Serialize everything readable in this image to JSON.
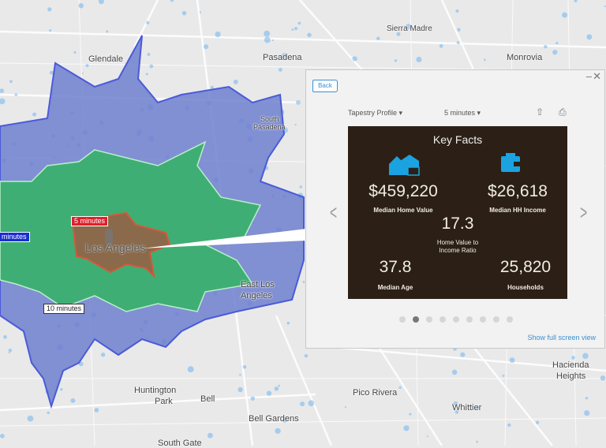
{
  "map": {
    "places": {
      "glendale": "Glendale",
      "pasadena": "Pasadena",
      "sierra_madre": "Sierra Madre",
      "monrovia": "Monrovia",
      "south_pasadena_1": "South",
      "south_pasadena_2": "Pasadena",
      "los_angeles": "Los Angeles",
      "east_la_1": "East Los",
      "east_la_2": "Angeles",
      "huntington_1": "Huntington",
      "huntington_2": "Park",
      "bell": "Bell",
      "bell_gardens": "Bell Gardens",
      "pico_rivera": "Pico Rivera",
      "whittier": "Whittier",
      "hacienda_1": "Hacienda",
      "hacienda_2": "Heights",
      "south_gate": "South Gate"
    },
    "drive_time_labels": {
      "five": "5 minutes",
      "ten": "10 minutes",
      "fifteen": "minutes"
    },
    "colors": {
      "fifteen_min": "#6f7fcf",
      "ten_min": "#3fae74",
      "five_min": "#8a6a4a",
      "five_label": "#e0202a",
      "fifteen_label": "#1a2fd0"
    }
  },
  "popup": {
    "back_label": "Back",
    "minimize_icon": "minimize-icon",
    "close_icon": "close-icon",
    "profile_select": "Tapestry Profile",
    "time_select": "5 minutes",
    "share_icon": "share-icon",
    "print_icon": "print-icon",
    "card": {
      "title": "Key Facts",
      "home_value": "$459,220",
      "home_value_label": "Median Home Value",
      "income": "$26,618",
      "income_label": "Median HH Income",
      "ratio": "17.3",
      "ratio_label_1": "Home Value to",
      "ratio_label_2": "Income Ratio",
      "age": "37.8",
      "age_label": "Median Age",
      "households": "25,820",
      "households_label": "Households",
      "icon_color": "#1aa3e0"
    },
    "page_count": 9,
    "active_page": 2,
    "full_screen_link": "Show full screen view"
  }
}
